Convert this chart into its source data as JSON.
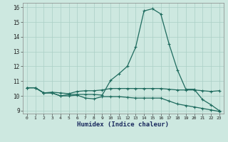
{
  "xlabel": "Humidex (Indice chaleur)",
  "xlim": [
    -0.5,
    23.5
  ],
  "ylim": [
    8.8,
    16.3
  ],
  "yticks": [
    9,
    10,
    11,
    12,
    13,
    14,
    15,
    16
  ],
  "background_color": "#cde8e0",
  "grid_color": "#aacfc5",
  "line_color": "#1e6b5e",
  "line1_x": [
    0,
    1,
    2,
    3,
    4,
    5,
    6,
    7,
    8,
    9,
    10,
    11,
    12,
    13,
    14,
    15,
    16,
    17,
    18,
    19,
    20,
    21,
    22,
    23
  ],
  "line1_y": [
    10.55,
    10.55,
    10.2,
    10.2,
    10.0,
    10.0,
    10.05,
    9.85,
    9.8,
    9.95,
    9.95,
    9.95,
    9.9,
    9.85,
    9.85,
    9.85,
    9.85,
    9.65,
    9.45,
    9.35,
    9.25,
    9.15,
    9.05,
    8.95
  ],
  "line2_x": [
    0,
    1,
    2,
    3,
    4,
    5,
    6,
    7,
    8,
    9,
    10,
    11,
    12,
    13,
    14,
    15,
    16,
    17,
    18,
    19,
    20,
    21,
    22,
    23
  ],
  "line2_y": [
    10.55,
    10.55,
    10.2,
    10.25,
    10.2,
    10.15,
    10.3,
    10.35,
    10.35,
    10.4,
    10.5,
    10.5,
    10.5,
    10.5,
    10.5,
    10.5,
    10.5,
    10.45,
    10.4,
    10.4,
    10.4,
    10.35,
    10.3,
    10.35
  ],
  "line3_x": [
    0,
    1,
    2,
    3,
    4,
    5,
    6,
    7,
    8,
    9,
    10,
    11,
    12,
    13,
    14,
    15,
    16,
    17,
    18,
    19,
    20,
    21,
    22,
    23
  ],
  "line3_y": [
    10.55,
    10.55,
    10.2,
    10.2,
    10.0,
    10.1,
    10.1,
    10.1,
    10.1,
    10.05,
    11.05,
    11.5,
    12.0,
    13.3,
    15.75,
    15.9,
    15.55,
    13.5,
    11.75,
    10.45,
    10.45,
    9.75,
    9.4,
    9.0
  ],
  "marker": "+",
  "markersize": 3,
  "linewidth": 0.9
}
